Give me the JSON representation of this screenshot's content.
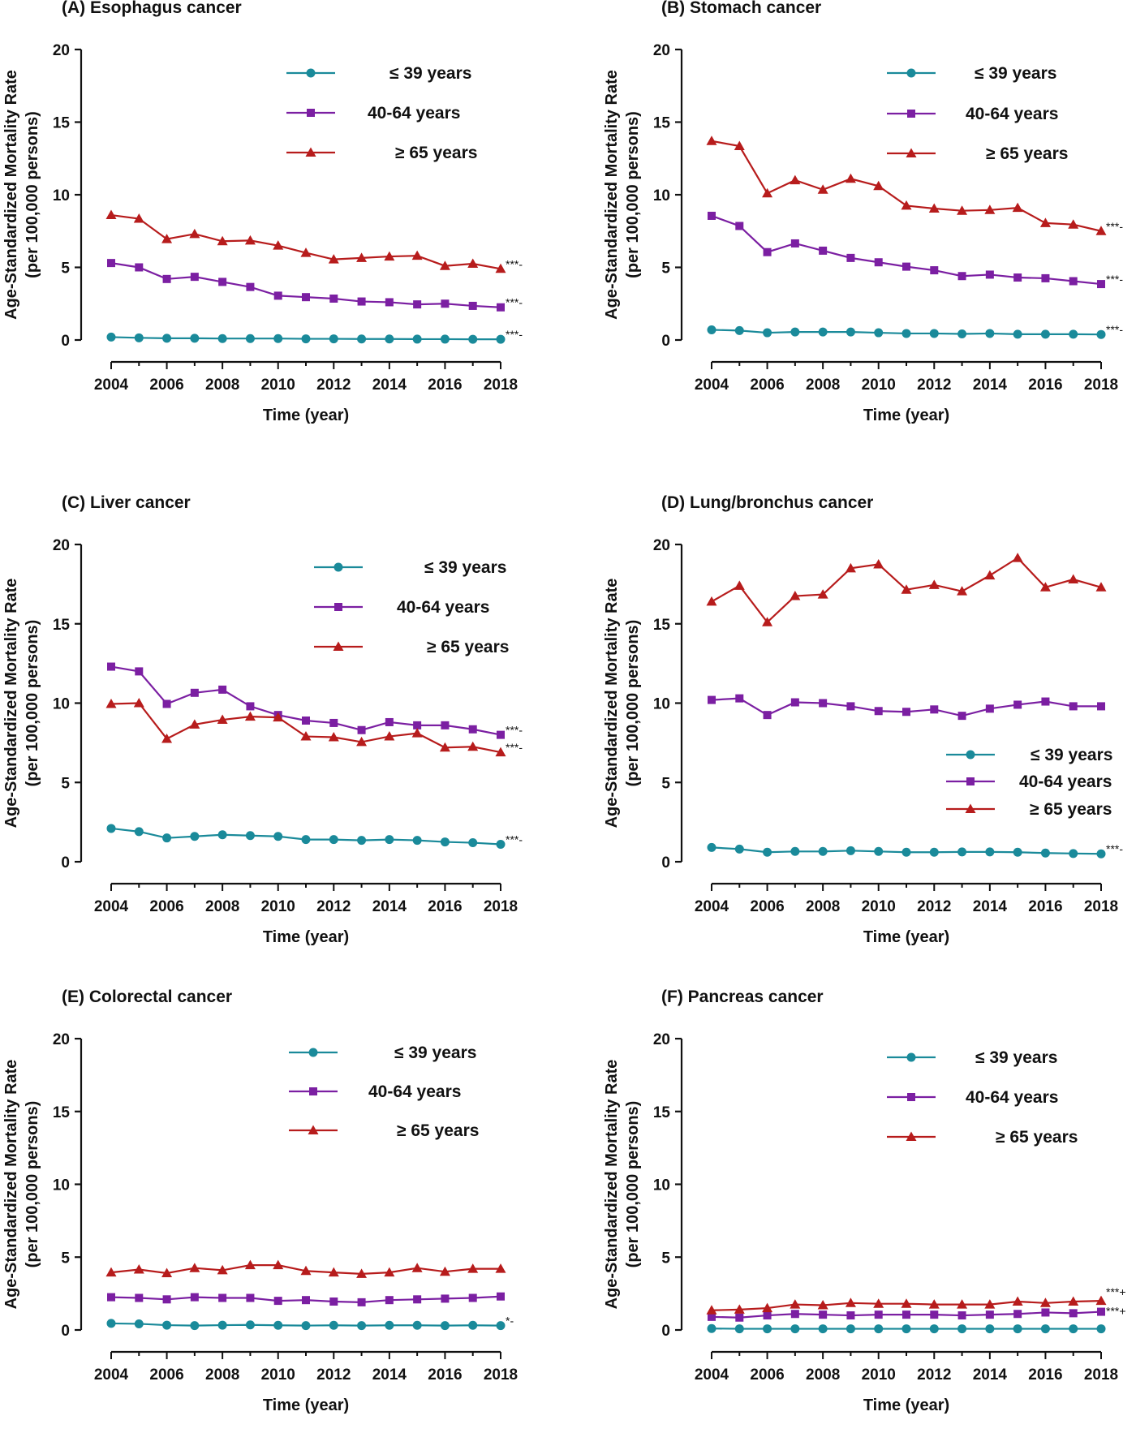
{
  "figure": {
    "x_ticks": [
      "2004",
      "2006",
      "2008",
      "2010",
      "2012",
      "2014",
      "2016",
      "2018"
    ],
    "y_ticks": [
      "0",
      "5",
      "10",
      "15",
      "20"
    ],
    "xlabel": "Time (year)",
    "ylabel_line1": "Age-Standardized Mortality Rate",
    "ylabel_line2": "(per 100,000 persons)"
  },
  "chart_data": [
    {
      "type": "line",
      "title": "(A) Esophagus cancer",
      "xlabel": "Time (year)",
      "ylabel": "Age-Standardized Mortality Rate (per 100,000 persons)",
      "xlim": [
        2004,
        2018
      ],
      "ylim": [
        0,
        20
      ],
      "grid": false,
      "legend_position": "top-right",
      "x": [
        2004,
        2005,
        2006,
        2007,
        2008,
        2009,
        2010,
        2011,
        2012,
        2013,
        2014,
        2015,
        2016,
        2017,
        2018
      ],
      "series": [
        {
          "name": "≤ 39 years",
          "color": "#1a8a9a",
          "marker": "circle",
          "significance": "***-",
          "values": [
            0.2,
            0.15,
            0.12,
            0.12,
            0.1,
            0.1,
            0.1,
            0.08,
            0.08,
            0.07,
            0.07,
            0.06,
            0.06,
            0.05,
            0.05
          ]
        },
        {
          "name": "40-64 years",
          "color": "#7b1fa2",
          "marker": "square",
          "significance": "***-",
          "values": [
            5.3,
            5.0,
            4.2,
            4.35,
            4.0,
            3.65,
            3.05,
            2.95,
            2.85,
            2.65,
            2.6,
            2.45,
            2.5,
            2.35,
            2.25
          ]
        },
        {
          "name": "≥ 65 years",
          "color": "#b71c1c",
          "marker": "triangle",
          "significance": "***-",
          "values": [
            8.6,
            8.35,
            6.95,
            7.3,
            6.8,
            6.85,
            6.5,
            6.0,
            5.55,
            5.65,
            5.75,
            5.8,
            5.1,
            5.25,
            4.9
          ]
        }
      ]
    },
    {
      "type": "line",
      "title": "(B) Stomach cancer",
      "xlabel": "Time (year)",
      "ylabel": "Age-Standardized Mortality Rate (per 100,000 persons)",
      "xlim": [
        2004,
        2018
      ],
      "ylim": [
        0,
        20
      ],
      "grid": false,
      "legend_position": "top-right",
      "x": [
        2004,
        2005,
        2006,
        2007,
        2008,
        2009,
        2010,
        2011,
        2012,
        2013,
        2014,
        2015,
        2016,
        2017,
        2018
      ],
      "series": [
        {
          "name": "≤ 39 years",
          "color": "#1a8a9a",
          "marker": "circle",
          "significance": "***-",
          "values": [
            0.7,
            0.65,
            0.5,
            0.55,
            0.55,
            0.55,
            0.5,
            0.45,
            0.45,
            0.42,
            0.45,
            0.4,
            0.4,
            0.4,
            0.38
          ]
        },
        {
          "name": "40-64 years",
          "color": "#7b1fa2",
          "marker": "square",
          "significance": "***-",
          "values": [
            8.55,
            7.85,
            6.05,
            6.65,
            6.15,
            5.65,
            5.35,
            5.05,
            4.8,
            4.4,
            4.5,
            4.3,
            4.25,
            4.05,
            3.85
          ]
        },
        {
          "name": "≥ 65 years",
          "color": "#b71c1c",
          "marker": "triangle",
          "significance": "***-",
          "values": [
            13.7,
            13.35,
            10.1,
            11.0,
            10.35,
            11.1,
            10.6,
            9.25,
            9.05,
            8.9,
            8.95,
            9.1,
            8.05,
            7.95,
            7.5
          ]
        }
      ]
    },
    {
      "type": "line",
      "title": "(C) Liver cancer",
      "xlabel": "Time (year)",
      "ylabel": "Age-Standardized Mortality Rate (per 100,000 persons)",
      "xlim": [
        2004,
        2018
      ],
      "ylim": [
        0,
        20
      ],
      "grid": false,
      "legend_position": "top-right",
      "x": [
        2004,
        2005,
        2006,
        2007,
        2008,
        2009,
        2010,
        2011,
        2012,
        2013,
        2014,
        2015,
        2016,
        2017,
        2018
      ],
      "series": [
        {
          "name": "≤ 39 years",
          "color": "#1a8a9a",
          "marker": "circle",
          "significance": "***-",
          "values": [
            2.1,
            1.9,
            1.5,
            1.6,
            1.7,
            1.65,
            1.6,
            1.4,
            1.4,
            1.35,
            1.4,
            1.35,
            1.25,
            1.2,
            1.1
          ]
        },
        {
          "name": "40-64 years",
          "color": "#7b1fa2",
          "marker": "square",
          "significance": "***-",
          "values": [
            12.3,
            12.0,
            9.95,
            10.65,
            10.85,
            9.8,
            9.25,
            8.9,
            8.75,
            8.3,
            8.8,
            8.6,
            8.6,
            8.35,
            8.0
          ]
        },
        {
          "name": "≥ 65 years",
          "color": "#b71c1c",
          "marker": "triangle",
          "significance": "***-",
          "values": [
            9.95,
            10.0,
            7.75,
            8.65,
            8.95,
            9.15,
            9.1,
            7.9,
            7.85,
            7.55,
            7.9,
            8.1,
            7.2,
            7.25,
            6.9
          ]
        }
      ]
    },
    {
      "type": "line",
      "title": "(D) Lung/bronchus cancer",
      "xlabel": "Time (year)",
      "ylabel": "Age-Standardized Mortality Rate (per 100,000 persons)",
      "xlim": [
        2004,
        2018
      ],
      "ylim": [
        0,
        20
      ],
      "grid": false,
      "legend_position": "bottom-right",
      "x": [
        2004,
        2005,
        2006,
        2007,
        2008,
        2009,
        2010,
        2011,
        2012,
        2013,
        2014,
        2015,
        2016,
        2017,
        2018
      ],
      "series": [
        {
          "name": "≤ 39 years",
          "color": "#1a8a9a",
          "marker": "circle",
          "significance": "***-",
          "values": [
            0.9,
            0.8,
            0.6,
            0.65,
            0.65,
            0.7,
            0.65,
            0.6,
            0.6,
            0.62,
            0.62,
            0.6,
            0.55,
            0.52,
            0.5
          ]
        },
        {
          "name": "40-64 years",
          "color": "#7b1fa2",
          "marker": "square",
          "significance": "",
          "values": [
            10.2,
            10.3,
            9.25,
            10.05,
            10.0,
            9.8,
            9.5,
            9.45,
            9.6,
            9.2,
            9.65,
            9.9,
            10.1,
            9.8,
            9.8
          ]
        },
        {
          "name": "≥ 65 years",
          "color": "#b71c1c",
          "marker": "triangle",
          "significance": "",
          "values": [
            16.4,
            17.4,
            15.1,
            16.75,
            16.85,
            18.5,
            18.75,
            17.15,
            17.45,
            17.05,
            18.05,
            19.15,
            17.3,
            17.8,
            17.3
          ]
        }
      ]
    },
    {
      "type": "line",
      "title": "(E) Colorectal cancer",
      "xlabel": "Time (year)",
      "ylabel": "Age-Standardized Mortality Rate (per 100,000 persons)",
      "xlim": [
        2004,
        2018
      ],
      "ylim": [
        0,
        20
      ],
      "grid": false,
      "legend_position": "top-right",
      "x": [
        2004,
        2005,
        2006,
        2007,
        2008,
        2009,
        2010,
        2011,
        2012,
        2013,
        2014,
        2015,
        2016,
        2017,
        2018
      ],
      "series": [
        {
          "name": "≤ 39 years",
          "color": "#1a8a9a",
          "marker": "circle",
          "significance": "*-",
          "values": [
            0.45,
            0.42,
            0.33,
            0.3,
            0.33,
            0.35,
            0.32,
            0.3,
            0.32,
            0.3,
            0.32,
            0.32,
            0.3,
            0.32,
            0.3
          ]
        },
        {
          "name": "40-64 years",
          "color": "#7b1fa2",
          "marker": "square",
          "significance": "",
          "values": [
            2.25,
            2.2,
            2.1,
            2.25,
            2.2,
            2.2,
            2.0,
            2.05,
            1.95,
            1.9,
            2.05,
            2.1,
            2.15,
            2.2,
            2.3
          ]
        },
        {
          "name": "≥ 65 years",
          "color": "#b71c1c",
          "marker": "triangle",
          "significance": "",
          "values": [
            3.95,
            4.15,
            3.9,
            4.25,
            4.1,
            4.45,
            4.45,
            4.05,
            3.95,
            3.85,
            3.95,
            4.25,
            4.0,
            4.2,
            4.2
          ]
        }
      ]
    },
    {
      "type": "line",
      "title": "(F) Pancreas cancer",
      "xlabel": "Time (year)",
      "ylabel": "Age-Standardized Mortality Rate (per 100,000 persons)",
      "xlim": [
        2004,
        2018
      ],
      "ylim": [
        0,
        20
      ],
      "grid": false,
      "legend_position": "top-right",
      "x": [
        2004,
        2005,
        2006,
        2007,
        2008,
        2009,
        2010,
        2011,
        2012,
        2013,
        2014,
        2015,
        2016,
        2017,
        2018
      ],
      "series": [
        {
          "name": "≤ 39 years",
          "color": "#1a8a9a",
          "marker": "circle",
          "significance": "",
          "values": [
            0.1,
            0.08,
            0.08,
            0.08,
            0.08,
            0.08,
            0.08,
            0.08,
            0.08,
            0.08,
            0.08,
            0.08,
            0.08,
            0.08,
            0.08
          ]
        },
        {
          "name": "40-64 years",
          "color": "#7b1fa2",
          "marker": "square",
          "significance": "***+",
          "values": [
            0.9,
            0.85,
            1.0,
            1.1,
            1.05,
            1.0,
            1.05,
            1.05,
            1.05,
            1.0,
            1.05,
            1.1,
            1.2,
            1.15,
            1.25
          ]
        },
        {
          "name": "≥ 65 years",
          "color": "#b71c1c",
          "marker": "triangle",
          "significance": "***+",
          "values": [
            1.35,
            1.4,
            1.5,
            1.75,
            1.7,
            1.85,
            1.8,
            1.8,
            1.75,
            1.75,
            1.75,
            1.95,
            1.85,
            1.95,
            2.0
          ]
        }
      ]
    }
  ]
}
